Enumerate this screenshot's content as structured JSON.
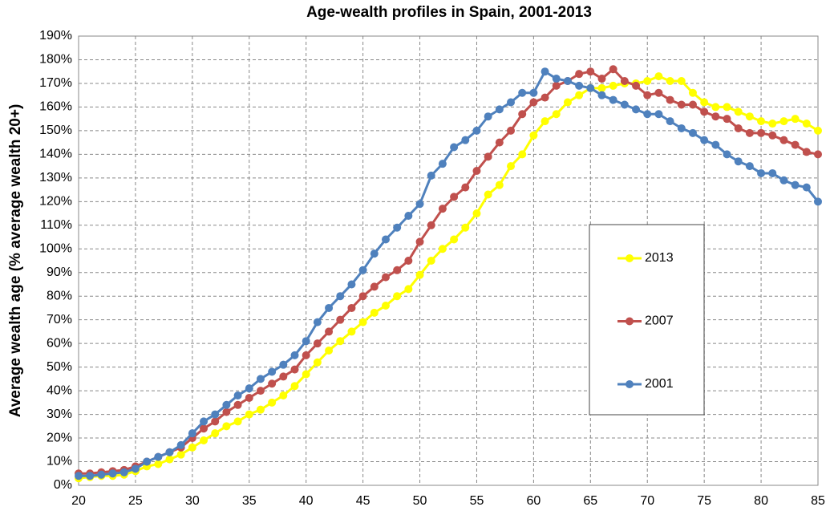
{
  "chart_data": {
    "type": "line",
    "title": "Age-wealth profiles in Spain, 2001-2013",
    "y_label": "Average wealth age (% average wealth 20+)",
    "x": [
      20,
      21,
      22,
      23,
      24,
      25,
      26,
      27,
      28,
      29,
      30,
      31,
      32,
      33,
      34,
      35,
      36,
      37,
      38,
      39,
      40,
      41,
      42,
      43,
      44,
      45,
      46,
      47,
      48,
      49,
      50,
      51,
      52,
      53,
      54,
      55,
      56,
      57,
      58,
      59,
      60,
      61,
      62,
      63,
      64,
      65,
      66,
      67,
      68,
      69,
      70,
      71,
      72,
      73,
      74,
      75,
      76,
      77,
      78,
      79,
      80,
      81,
      82,
      83,
      84,
      85
    ],
    "series": [
      {
        "name": "2013",
        "color": "#ffff00",
        "values": [
          3,
          3.5,
          4,
          4,
          4.5,
          6,
          8,
          9,
          11,
          13,
          16,
          19,
          22,
          25,
          27,
          30,
          32,
          35,
          38,
          42,
          47,
          52,
          57,
          61,
          65,
          69,
          73,
          76,
          80,
          83,
          89,
          95,
          100,
          104,
          109,
          115,
          123,
          127,
          135,
          140,
          148,
          154,
          157,
          162,
          165,
          168,
          168,
          169,
          170,
          170,
          171,
          173,
          171,
          171,
          166,
          162,
          160,
          160,
          158,
          156,
          154,
          153,
          154,
          155,
          153,
          150
        ]
      },
      {
        "name": "2007",
        "color": "#c0504d",
        "values": [
          5,
          5,
          5.5,
          6,
          6.5,
          8,
          10,
          12,
          14,
          16,
          20,
          24,
          27,
          31,
          34,
          37,
          40,
          43,
          46,
          49,
          55,
          60,
          65,
          70,
          75,
          80,
          84,
          88,
          91,
          95,
          103,
          110,
          117,
          122,
          126,
          133,
          139,
          145,
          150,
          157,
          162,
          164,
          169,
          171,
          174,
          175,
          172,
          176,
          171,
          169,
          165,
          166,
          163,
          161,
          161,
          158,
          156,
          155,
          151,
          149,
          149,
          148,
          146,
          144,
          141,
          140
        ]
      },
      {
        "name": "2001",
        "color": "#4f81bd",
        "values": [
          4,
          4,
          4.5,
          5,
          5.5,
          7,
          10,
          12,
          14,
          17,
          22,
          27,
          30,
          34,
          38,
          41,
          45,
          48,
          51,
          55,
          61,
          69,
          75,
          80,
          85,
          91,
          98,
          104,
          109,
          114,
          119,
          131,
          136,
          143,
          146,
          150,
          156,
          159,
          162,
          166,
          166,
          175,
          172,
          171,
          169,
          168,
          165,
          163,
          161,
          159,
          157,
          157,
          154,
          151,
          149,
          146,
          144,
          140,
          137,
          135,
          132,
          132,
          129,
          127,
          126,
          120
        ]
      }
    ],
    "xlim": [
      20,
      85
    ],
    "xticks": [
      20,
      25,
      30,
      35,
      40,
      45,
      50,
      55,
      60,
      65,
      70,
      75,
      80,
      85
    ],
    "ylim": [
      0,
      190
    ],
    "yticks": [
      {
        "value": 0,
        "label": "0%"
      },
      {
        "value": 10,
        "label": "10%"
      },
      {
        "value": 20,
        "label": "20%"
      },
      {
        "value": 30,
        "label": "30%"
      },
      {
        "value": 40,
        "label": "40%"
      },
      {
        "value": 50,
        "label": "50%"
      },
      {
        "value": 60,
        "label": "60%"
      },
      {
        "value": 70,
        "label": "70%"
      },
      {
        "value": 80,
        "label": "80%"
      },
      {
        "value": 90,
        "label": "90%"
      },
      {
        "value": 100,
        "label": "100%"
      },
      {
        "value": 110,
        "label": "110%"
      },
      {
        "value": 120,
        "label": "120%"
      },
      {
        "value": 130,
        "label": "130%"
      },
      {
        "value": 140,
        "label": "140%"
      },
      {
        "value": 150,
        "label": "150%"
      },
      {
        "value": 160,
        "label": "160%"
      },
      {
        "value": 170,
        "label": "170%"
      },
      {
        "value": 180,
        "label": "180%"
      },
      {
        "value": 190,
        "label": "190%"
      }
    ],
    "grid": true
  }
}
